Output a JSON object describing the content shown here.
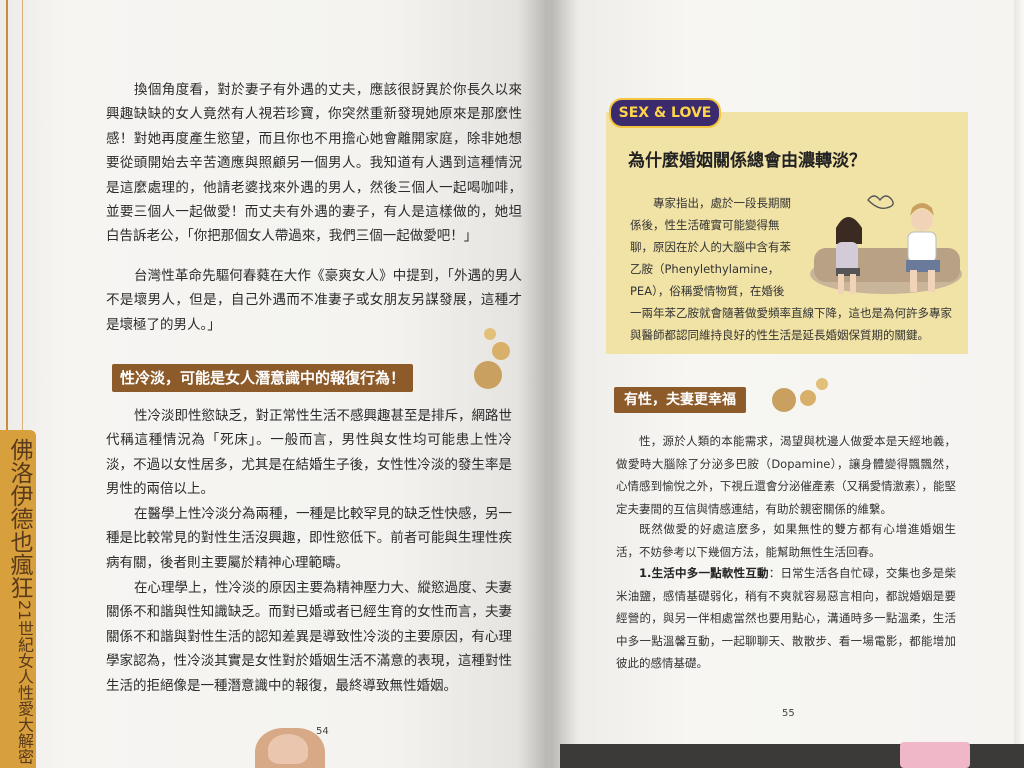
{
  "left_page": {
    "side_tab": {
      "title": "佛洛伊德也瘋狂",
      "subtitle": "21世紀女人性愛大解密"
    },
    "paragraphs_top": [
      "換個角度看，對於妻子有外遇的丈夫，應該很訝異於你長久以來興趣缺缺的女人竟然有人視若珍寶，你突然重新發現她原來是那麼性感！對她再度產生慾望，而且你也不用擔心她會離開家庭，除非她想要從頭開始去辛苦適應與照顧另一個男人。我知道有人遇到這種情況是這麼處理的，他請老婆找來外遇的男人，然後三個人一起喝咖啡，並要三個人一起做愛！而丈夫有外遇的妻子，有人是這樣做的，她坦白告訴老公，「你把那個女人帶過來，我們三個一起做愛吧！」",
      "台灣性革命先驅何春蕤在大作《豪爽女人》中提到，「外遇的男人不是壞男人，但是，自己外遇而不准妻子或女朋友另謀發展，這種才是壞極了的男人。」"
    ],
    "heading": "性冷淡，可能是女人潛意識中的報復行為！",
    "paragraphs_bottom": [
      "性冷淡即性慾缺乏，對正常性生活不感興趣甚至是排斥，網路世代稱這種情況為「死床」。一般而言，男性與女性均可能患上性冷淡，不過以女性居多，尤其是在結婚生子後，女性性冷淡的發生率是男性的兩倍以上。",
      "在醫學上性冷淡分為兩種，一種是比較罕見的缺乏性快感，另一種是比較常見的對性生活沒興趣，即性慾低下。前者可能與生理性疾病有關，後者則主要屬於精神心理範疇。",
      "在心理學上，性冷淡的原因主要為精神壓力大、縱慾過度、夫妻關係不和諧與性知識缺乏。而對已婚或者已經生育的女性而言，夫妻關係不和諧與對性生活的認知差異是導致性冷淡的主要原因，有心理學家認為，性冷淡其實是女性對於婚姻生活不滿意的表現，這種對性生活的拒絕像是一種潛意識中的報復，最終導致無性婚姻。"
    ],
    "page_number": "54"
  },
  "right_page": {
    "box": {
      "logo": "SEX & LOVE",
      "title": "為什麼婚姻關係總會由濃轉淡？",
      "text_wrapped": "專家指出，處於一段長期關係後，性生活確實可能變得無聊，原因在於人的大腦中含有苯乙胺（Phenylethylamine，PEA），俗稱愛情物質，在婚後",
      "text_full": "一兩年苯乙胺就會隨著做愛頻率直線下降，這也是為何許多專家與醫師都認同維持良好的性生活是延長婚姻保質期的關鍵。"
    },
    "heading": "有性，夫妻更幸福",
    "paragraphs": [
      "性，源於人類的本能需求，渴望與枕邊人做愛本是天經地義，做愛時大腦除了分泌多巴胺（Dopamine），讓身體變得飄飄然，心情感到愉悅之外，下視丘還會分泌催產素（又稱愛情激素），能堅定夫妻間的互信與情感連結，有助於親密關係的維繫。",
      "既然做愛的好處這麼多，如果無性的雙方都有心增進婚姻生活，不妨參考以下幾個方法，能幫助無性生活回春。"
    ],
    "tip": {
      "label": "1.生活中多一點軟性互動",
      "text": "：日常生活各自忙碌，交集也多是柴米油鹽，感情基礎弱化，稍有不爽就容易惡言相向，都說婚姻是要經營的，與另一伴相處當然也要用點心，溝通時多一點溫柔，生活中多一點溫馨互動，一起聊聊天、散散步、看一場電影，都能增加彼此的感情基礎。"
    },
    "page_number": "55"
  },
  "colors": {
    "heading_brown": "#8d5a2a",
    "box_yellow": "#f1e3a6",
    "tab_gold": "#d8a03c",
    "dot_gold": "#d9b06a"
  }
}
